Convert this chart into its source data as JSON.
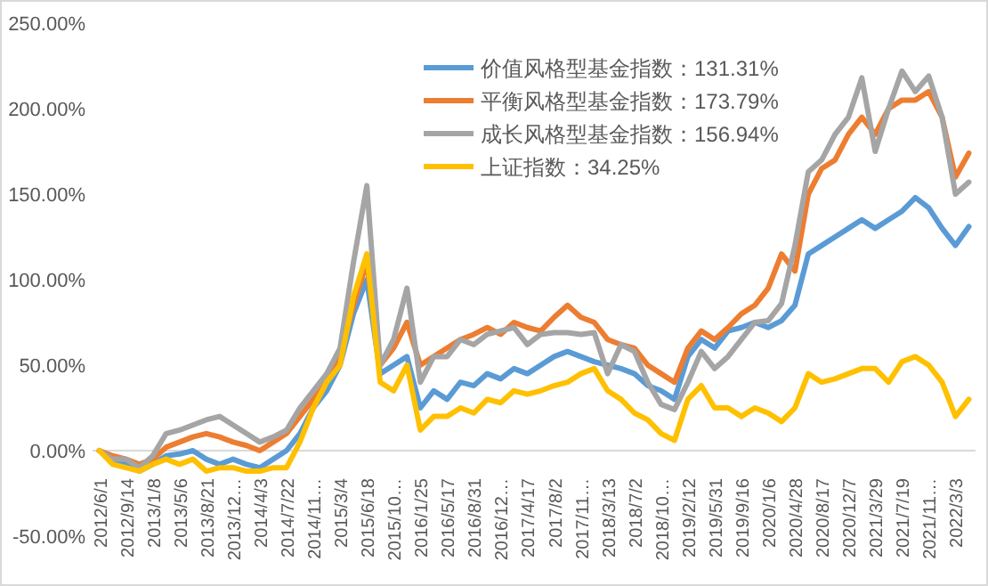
{
  "chart_data": {
    "type": "line",
    "categories": [
      "2012/6/1",
      null,
      "2012/9/14",
      null,
      "2013/1/8",
      null,
      "2013/5/6",
      null,
      "2013/8/21",
      null,
      "2013/12…",
      null,
      "2014/4/3",
      null,
      "2014/7/22",
      null,
      "2014/11…",
      null,
      "2015/3/4",
      null,
      "2015/6/18",
      null,
      "2015/10…",
      null,
      "2016/1/25",
      null,
      "2016/5/17",
      null,
      "2016/8/31",
      null,
      "2016/12…",
      null,
      "2017/4/17",
      null,
      "2017/8/2",
      null,
      "2017/11…",
      null,
      "2018/3/13",
      null,
      "2018/7/2",
      null,
      "2018/10…",
      null,
      "2019/2/12",
      null,
      "2019/5/31",
      null,
      "2019/9/16",
      null,
      "2020/1/6",
      null,
      "2020/4/28",
      null,
      "2020/8/17",
      null,
      "2020/12/7",
      null,
      "2021/3/29",
      null,
      "2021/7/19",
      null,
      "2021/11…",
      null,
      "2022/3/3",
      null
    ],
    "series": [
      {
        "name": "价值风格型基金指数：131.31%",
        "color": "#5b9bd5",
        "values": [
          0,
          -5,
          -8,
          -12,
          -8,
          -3,
          -2,
          0,
          -5,
          -8,
          -5,
          -8,
          -10,
          -5,
          0,
          10,
          25,
          35,
          50,
          80,
          100,
          45,
          50,
          55,
          25,
          35,
          30,
          40,
          38,
          45,
          42,
          48,
          45,
          50,
          55,
          58,
          55,
          52,
          50,
          48,
          45,
          38,
          35,
          30,
          55,
          65,
          60,
          70,
          72,
          75,
          72,
          76,
          85,
          115,
          120,
          125,
          130,
          135,
          130,
          135,
          140,
          148,
          142,
          130,
          120,
          131
        ]
      },
      {
        "name": "平衡风格型基金指数：173.79%",
        "color": "#ed7d31",
        "values": [
          0,
          -3,
          -5,
          -8,
          -5,
          2,
          5,
          8,
          10,
          8,
          5,
          3,
          0,
          5,
          10,
          20,
          30,
          40,
          55,
          85,
          110,
          50,
          60,
          75,
          50,
          55,
          60,
          65,
          68,
          72,
          68,
          75,
          72,
          70,
          78,
          85,
          78,
          75,
          65,
          62,
          60,
          50,
          45,
          40,
          60,
          70,
          65,
          72,
          80,
          85,
          95,
          115,
          105,
          150,
          165,
          170,
          185,
          195,
          185,
          200,
          205,
          205,
          210,
          195,
          160,
          174
        ]
      },
      {
        "name": "成长风格型基金指数：156.94%",
        "color": "#a5a5a5",
        "values": [
          0,
          -5,
          -5,
          -10,
          -3,
          10,
          12,
          15,
          18,
          20,
          15,
          10,
          5,
          8,
          12,
          25,
          35,
          45,
          60,
          110,
          155,
          50,
          65,
          95,
          40,
          55,
          55,
          65,
          62,
          68,
          70,
          72,
          62,
          68,
          69,
          69,
          68,
          69,
          45,
          62,
          58,
          40,
          27,
          24,
          40,
          58,
          48,
          55,
          65,
          75,
          76,
          86,
          120,
          163,
          170,
          185,
          195,
          218,
          175,
          200,
          222,
          210,
          219,
          195,
          150,
          157
        ]
      },
      {
        "name": "上证指数：34.25%",
        "color": "#ffc000",
        "values": [
          0,
          -8,
          -10,
          -12,
          -8,
          -5,
          -8,
          -5,
          -12,
          -10,
          -10,
          -12,
          -12,
          -10,
          -10,
          5,
          25,
          40,
          50,
          90,
          115,
          40,
          35,
          50,
          12,
          20,
          20,
          25,
          22,
          30,
          28,
          35,
          33,
          35,
          38,
          40,
          45,
          48,
          35,
          30,
          22,
          18,
          10,
          6,
          30,
          38,
          25,
          25,
          20,
          25,
          22,
          17,
          25,
          45,
          40,
          42,
          45,
          48,
          48,
          40,
          52,
          55,
          50,
          40,
          20,
          30
        ]
      }
    ],
    "ylim": [
      -50,
      250
    ],
    "yticks": [
      {
        "value": -50,
        "label": "-50.00%"
      },
      {
        "value": 0,
        "label": "0.00%"
      },
      {
        "value": 50,
        "label": "50.00%"
      },
      {
        "value": 100,
        "label": "100.00%"
      },
      {
        "value": 150,
        "label": "150.00%"
      },
      {
        "value": 200,
        "label": "200.00%"
      },
      {
        "value": 250,
        "label": "250.00%"
      }
    ],
    "legend": "top right",
    "grid": false,
    "marker": "none",
    "line_style": "solid"
  }
}
